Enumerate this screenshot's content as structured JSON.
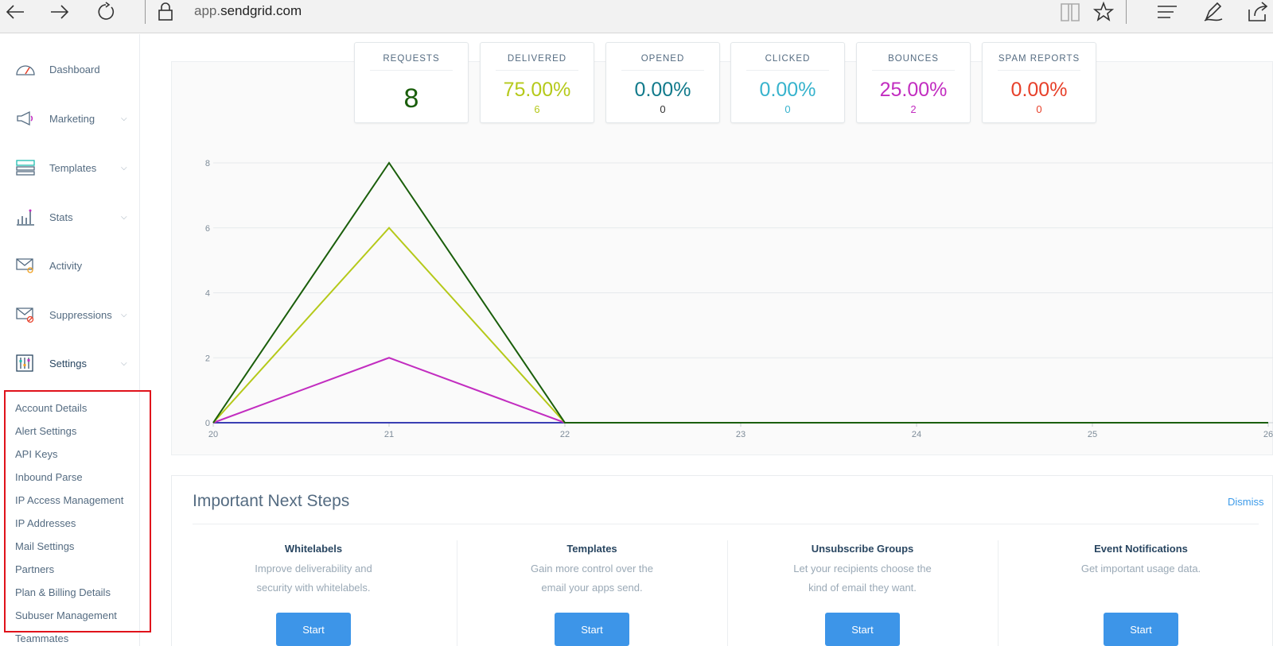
{
  "browser": {
    "url_prefix": "app.",
    "url_domain": "sendgrid.com"
  },
  "sidebar": {
    "items": [
      {
        "label": "Dashboard"
      },
      {
        "label": "Marketing"
      },
      {
        "label": "Templates"
      },
      {
        "label": "Stats"
      },
      {
        "label": "Activity"
      },
      {
        "label": "Suppressions"
      },
      {
        "label": "Settings"
      }
    ],
    "chevron": "⌵",
    "settings_sub": [
      "Account Details",
      "Alert Settings",
      "API Keys",
      "Inbound Parse",
      "IP Access Management",
      "IP Addresses",
      "Mail Settings",
      "Partners",
      "Plan & Billing Details",
      "Subuser Management",
      "Teammates"
    ]
  },
  "stats": {
    "requests": {
      "title": "REQUESTS",
      "value": "8",
      "color": "#1a5e0b"
    },
    "delivered": {
      "title": "DELIVERED",
      "pct": "75.00%",
      "count": "6",
      "color": "#b5c91a"
    },
    "opened": {
      "title": "OPENED",
      "pct": "0.00%",
      "count": "0",
      "color": "#117a8b",
      "count_color": "#333333"
    },
    "clicked": {
      "title": "CLICKED",
      "pct": "0.00%",
      "count": "0",
      "color": "#37b3cd"
    },
    "bounces": {
      "title": "BOUNCES",
      "pct": "25.00%",
      "count": "2",
      "color": "#c22dc0"
    },
    "spam": {
      "title": "SPAM REPORTS",
      "pct": "0.00%",
      "count": "0",
      "color": "#e7402a"
    }
  },
  "chart_data": {
    "type": "line",
    "x": [
      20,
      21,
      22,
      23,
      24,
      25,
      26
    ],
    "ylim": [
      0,
      8
    ],
    "y_ticks": [
      0,
      2,
      4,
      6,
      8
    ],
    "series": [
      {
        "key": "requests",
        "color": "#1a5e0b",
        "values": [
          0,
          8,
          0,
          0,
          0,
          0,
          0
        ]
      },
      {
        "key": "delivered",
        "color": "#b5c91a",
        "values": [
          0,
          6,
          0,
          0,
          0,
          0,
          0
        ]
      },
      {
        "key": "bounces",
        "color": "#c22dc0",
        "values": [
          0,
          2,
          0,
          0,
          0,
          0,
          0
        ]
      },
      {
        "key": "other",
        "color": "#3a3fb3",
        "values": [
          0,
          0,
          0,
          0,
          0,
          0,
          0
        ]
      }
    ]
  },
  "next_steps": {
    "title": "Important Next Steps",
    "dismiss": "Dismiss",
    "button_label": "Start",
    "cards": [
      {
        "heading": "Whitelabels",
        "line1": "Improve deliverability and",
        "line2": "security with whitelabels."
      },
      {
        "heading": "Templates",
        "line1": "Gain more control over the",
        "line2": "email your apps send."
      },
      {
        "heading": "Unsubscribe Groups",
        "line1": "Let your recipients choose the",
        "line2": "kind of email they want."
      },
      {
        "heading": "Event Notifications",
        "line1": "Get important usage data.",
        "line2": ""
      }
    ]
  }
}
